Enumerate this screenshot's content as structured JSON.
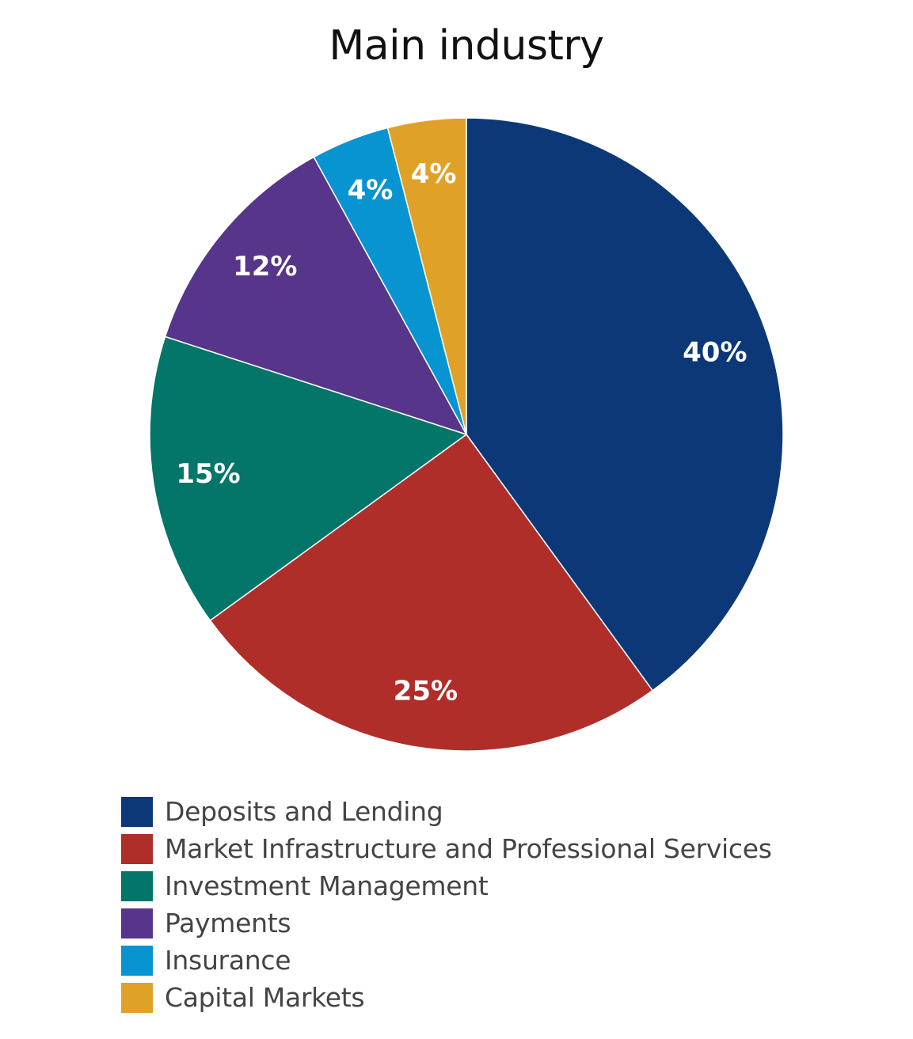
{
  "chart_data": {
    "type": "pie",
    "title": "Main industry",
    "categories": [
      "Deposits and Lending",
      "Market Infrastructure and Professional Services",
      "Investment Management",
      "Payments",
      "Insurance",
      "Capital Markets"
    ],
    "values": [
      40,
      25,
      15,
      12,
      4,
      4
    ],
    "labels": [
      "40%",
      "25%",
      "15%",
      "12%",
      "4%",
      "4%"
    ],
    "colors": [
      "#0d3878",
      "#b02e2a",
      "#037569",
      "#56358a",
      "#0894d1",
      "#e0a128"
    ],
    "start_angle": "12 o'clock",
    "direction": "clockwise",
    "legend_position": "bottom-left"
  }
}
